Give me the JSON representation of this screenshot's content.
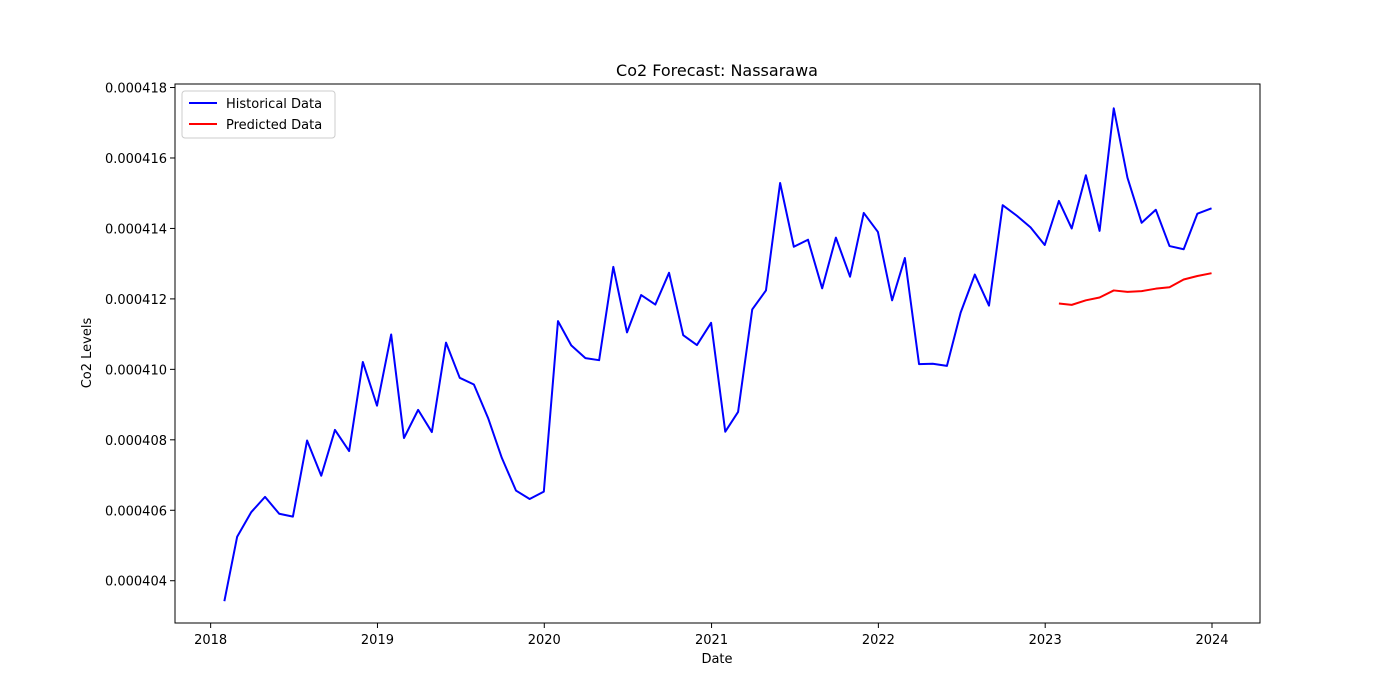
{
  "chart_data": {
    "type": "line",
    "title": "Co2 Forecast: Nassarawa",
    "xlabel": "Date",
    "ylabel": "Co2 Levels",
    "xlim": [
      "2017-10-15",
      "2024-04-15"
    ],
    "ylim": [
      0.0004028,
      0.0004181
    ],
    "x_ticks": [
      "2018-01-01",
      "2019-01-01",
      "2020-01-01",
      "2021-01-01",
      "2022-01-01",
      "2023-01-01",
      "2024-01-01"
    ],
    "x_tick_labels": [
      "2018",
      "2019",
      "2020",
      "2021",
      "2022",
      "2023",
      "2024"
    ],
    "y_ticks": [
      0.000404,
      0.000406,
      0.000408,
      0.00041,
      0.000412,
      0.000414,
      0.000416,
      0.000418
    ],
    "y_tick_labels": [
      "0.000404",
      "0.000406",
      "0.000408",
      "0.000410",
      "0.000412",
      "0.000414",
      "0.000416",
      "0.000418"
    ],
    "grid": false,
    "legend_position": "top-left",
    "series": [
      {
        "name": "Historical Data",
        "color": "#0000ff",
        "x": [
          "2018-01-31",
          "2018-02-28",
          "2018-03-31",
          "2018-04-30",
          "2018-05-31",
          "2018-06-30",
          "2018-07-31",
          "2018-08-31",
          "2018-09-30",
          "2018-10-31",
          "2018-11-30",
          "2018-12-31",
          "2019-01-31",
          "2019-02-28",
          "2019-03-31",
          "2019-04-30",
          "2019-05-31",
          "2019-06-30",
          "2019-07-31",
          "2019-08-31",
          "2019-09-30",
          "2019-10-31",
          "2019-11-30",
          "2019-12-31",
          "2020-01-31",
          "2020-02-29",
          "2020-03-31",
          "2020-04-30",
          "2020-05-31",
          "2020-06-30",
          "2020-07-31",
          "2020-08-31",
          "2020-09-30",
          "2020-10-31",
          "2020-11-30",
          "2020-12-31",
          "2021-01-31",
          "2021-02-28",
          "2021-03-31",
          "2021-04-30",
          "2021-05-31",
          "2021-06-30",
          "2021-07-31",
          "2021-08-31",
          "2021-09-30",
          "2021-10-31",
          "2021-11-30",
          "2021-12-31",
          "2022-01-31",
          "2022-02-28",
          "2022-03-31",
          "2022-04-30",
          "2022-05-31",
          "2022-06-30",
          "2022-07-31",
          "2022-08-31",
          "2022-09-30",
          "2022-10-31",
          "2022-11-30",
          "2022-12-31",
          "2023-01-31",
          "2023-02-28",
          "2023-03-31",
          "2023-04-30",
          "2023-05-31",
          "2023-06-30",
          "2023-07-31",
          "2023-08-31",
          "2023-09-30",
          "2023-10-31",
          "2023-11-30",
          "2023-12-31"
        ],
        "y": [
          0.00040342,
          0.00040525,
          0.00040595,
          0.00040638,
          0.0004059,
          0.00040582,
          0.00040798,
          0.00040698,
          0.00040828,
          0.00040768,
          0.00041021,
          0.00040897,
          0.00041099,
          0.00040805,
          0.00040885,
          0.00040822,
          0.00041076,
          0.00040976,
          0.00040957,
          0.00040862,
          0.00040749,
          0.00040656,
          0.00040632,
          0.00040653,
          0.00041137,
          0.00041068,
          0.00041032,
          0.00041026,
          0.00041291,
          0.00041105,
          0.00041211,
          0.00041184,
          0.00041274,
          0.00041097,
          0.00041069,
          0.00041132,
          0.00040823,
          0.00040879,
          0.0004117,
          0.00041224,
          0.00041529,
          0.00041348,
          0.00041368,
          0.0004123,
          0.00041374,
          0.00041263,
          0.00041444,
          0.0004139,
          0.00041196,
          0.00041316,
          0.00041015,
          0.00041016,
          0.0004101,
          0.00041161,
          0.00041269,
          0.00041181,
          0.00041466,
          0.00041436,
          0.00041403,
          0.00041353,
          0.00041478,
          0.000414,
          0.00041551,
          0.00041393,
          0.00041741,
          0.00041544,
          0.00041416,
          0.00041453,
          0.0004135,
          0.00041341,
          0.00041442,
          0.00041457
        ]
      },
      {
        "name": "Predicted Data",
        "color": "#ff0000",
        "x": [
          "2023-01-31",
          "2023-02-28",
          "2023-03-31",
          "2023-04-30",
          "2023-05-31",
          "2023-06-30",
          "2023-07-31",
          "2023-08-31",
          "2023-09-30",
          "2023-10-31",
          "2023-11-30",
          "2023-12-31"
        ],
        "y": [
          0.00041187,
          0.00041183,
          0.00041196,
          0.00041204,
          0.00041224,
          0.0004122,
          0.00041222,
          0.00041229,
          0.00041233,
          0.00041255,
          0.00041265,
          0.00041273
        ]
      }
    ]
  }
}
